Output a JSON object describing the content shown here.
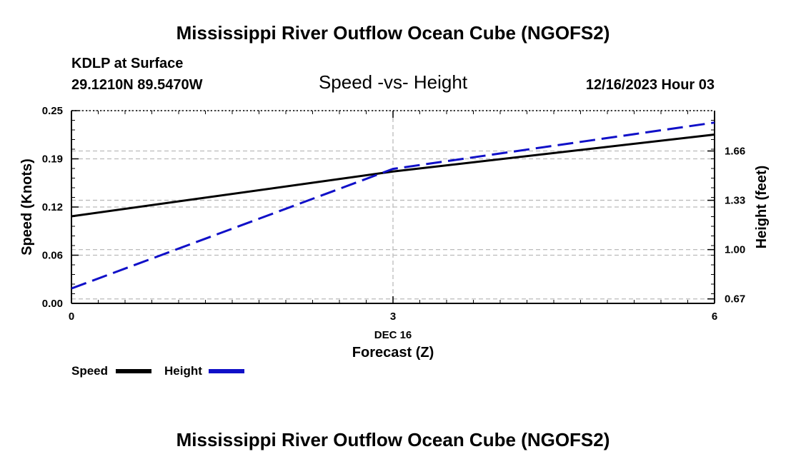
{
  "page": {
    "title_top": "Mississippi River Outflow Ocean Cube (NGOFS2)",
    "title_bottom": "Mississippi River Outflow Ocean Cube (NGOFS2)",
    "station": "KDLP at Surface",
    "coords": "29.1210N  89.5470W",
    "datetime": "12/16/2023 Hour 03"
  },
  "chart_data": {
    "type": "line",
    "title": "Speed -vs- Height",
    "xlabel": "Forecast (Z)",
    "ylabel": "Speed (Knots)",
    "y2label": "Height (feet)",
    "x_date_label": "DEC 16",
    "xlim": [
      0,
      6
    ],
    "ylim": [
      0,
      0.25
    ],
    "y2lim": [
      0.64,
      1.93
    ],
    "x_ticks": [
      0,
      3,
      6
    ],
    "x_tick_labels": [
      "0",
      "3",
      "6"
    ],
    "y_ticks": [
      0.0,
      0.0625,
      0.125,
      0.1875,
      0.25
    ],
    "y_tick_labels": [
      "0.00",
      "0.06",
      "0.12",
      "0.19",
      "0.25"
    ],
    "y2_ticks": [
      0.67,
      1.0,
      1.33,
      1.66
    ],
    "y2_tick_labels": [
      "0.67",
      "1.00",
      "1.33",
      "1.66"
    ],
    "series": [
      {
        "name": "Speed",
        "axis": "left",
        "color": "#000000",
        "dash": "solid",
        "x": [
          0,
          3,
          6
        ],
        "values": [
          0.113,
          0.171,
          0.219
        ]
      },
      {
        "name": "Height",
        "axis": "right",
        "color": "#1010c8",
        "dash": "dashed",
        "x": [
          0,
          3,
          6
        ],
        "values": [
          0.74,
          1.54,
          1.85
        ]
      }
    ],
    "grid": true,
    "legend": "bottom-left"
  }
}
